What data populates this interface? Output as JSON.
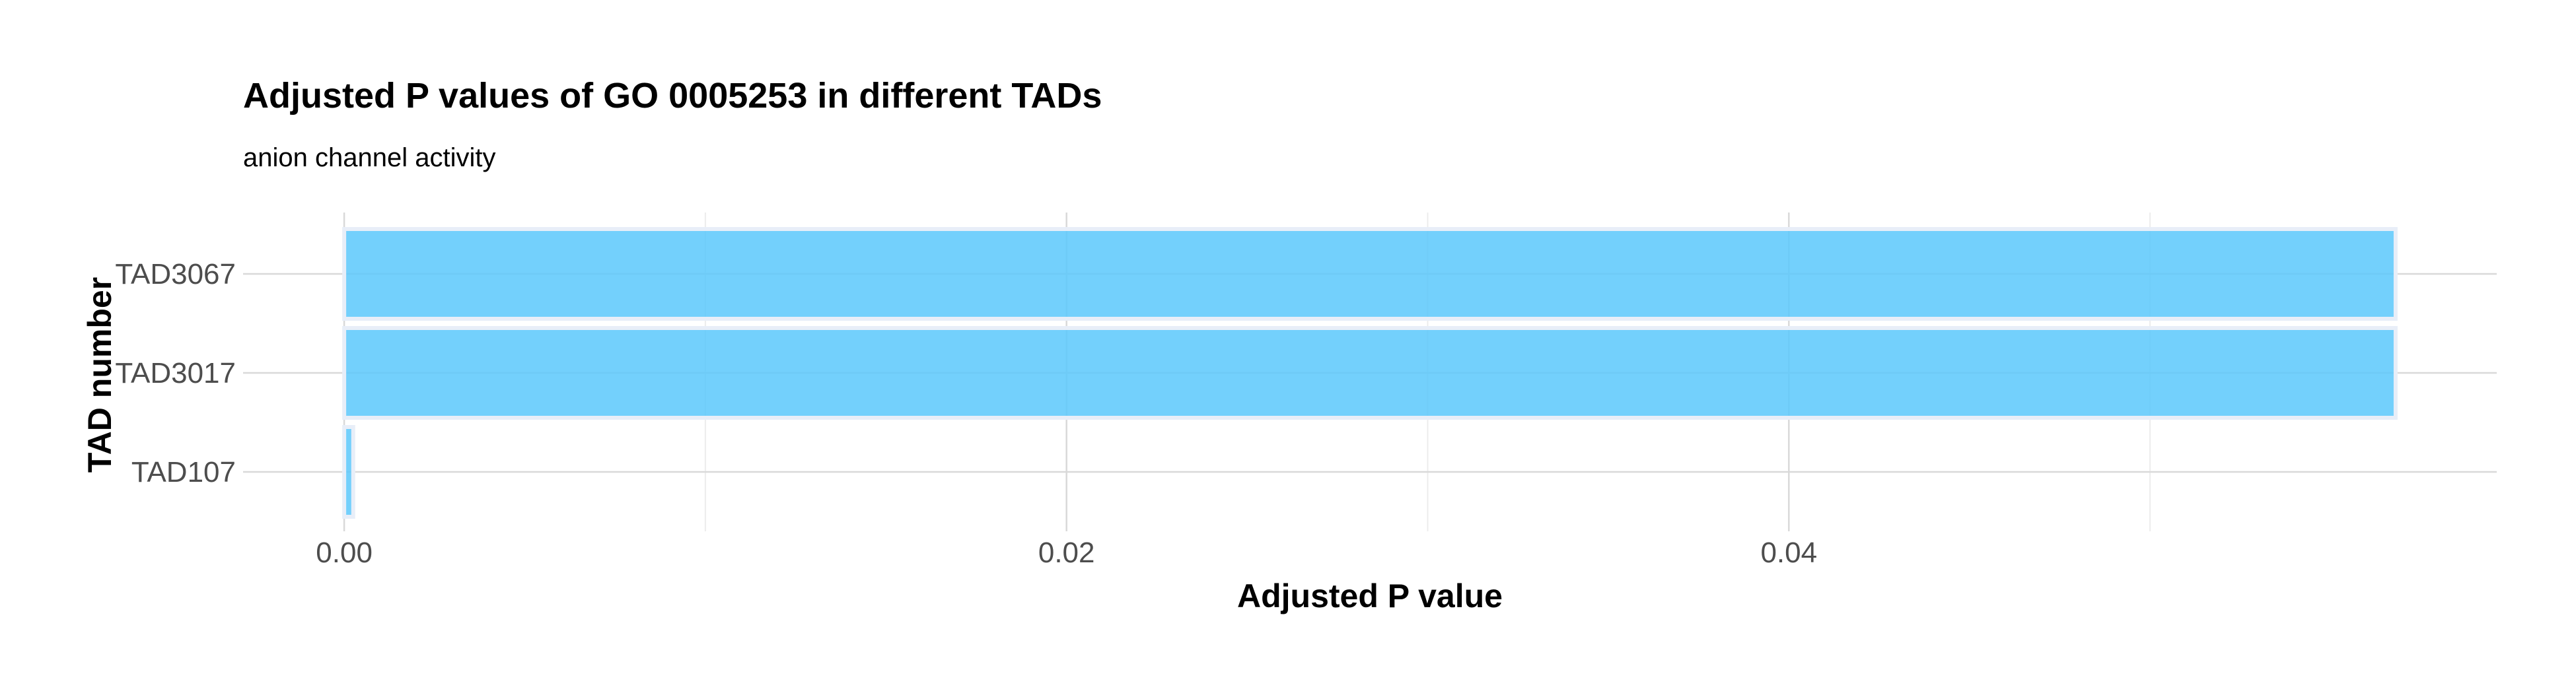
{
  "chart_data": {
    "type": "bar",
    "orientation": "horizontal",
    "title": "Adjusted P values of GO 0005253 in different TADs",
    "subtitle": "anion channel activity",
    "xlabel": "Adjusted P value",
    "ylabel": "TAD number",
    "categories": [
      "TAD3067",
      "TAD3017",
      "TAD107"
    ],
    "values": [
      0.0568,
      0.0568,
      0.00025
    ],
    "xlim": [
      -0.0028,
      0.0596
    ],
    "x_ticks": [
      0.0,
      0.02,
      0.04
    ],
    "x_tick_labels": [
      "0.00",
      "0.02",
      "0.04"
    ],
    "grid": true,
    "bar_color": "#5bc8fb",
    "bar_edge_color": "#e8eef8",
    "grid_major_color": "#d9d9d9",
    "grid_minor_color": "#ececec"
  }
}
